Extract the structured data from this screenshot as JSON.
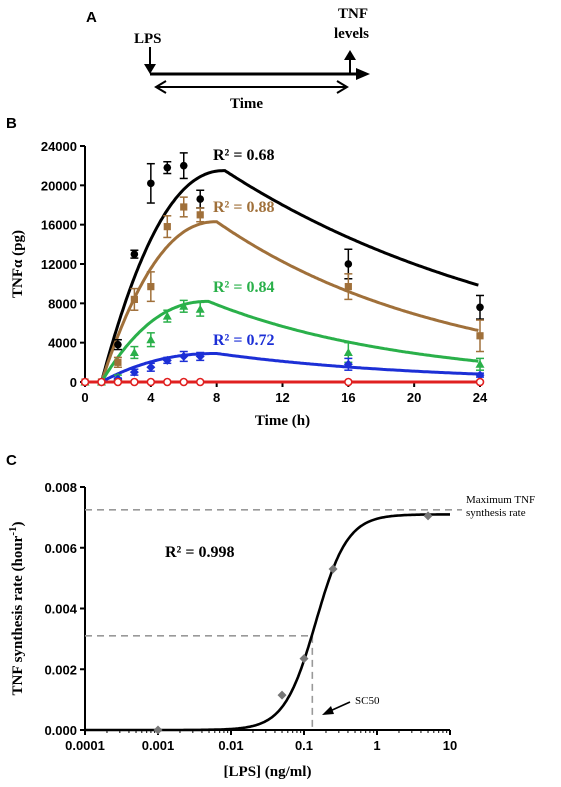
{
  "panel_a": {
    "label": "A",
    "lps": "LPS",
    "tnf_line1": "TNF",
    "tnf_line2": "levels",
    "time": "Time"
  },
  "chart_data": [
    {
      "type": "line",
      "panel": "B",
      "xlabel": "Time (h)",
      "ylabel": "TNFα (pg)",
      "xlim": [
        0,
        24
      ],
      "ylim": [
        0,
        24000
      ],
      "xticks": [
        "0",
        "4",
        "8",
        "12",
        "16",
        "20",
        "24"
      ],
      "yticks": [
        "0",
        "4000",
        "8000",
        "12000",
        "16000",
        "20000",
        "24000"
      ],
      "series": [
        {
          "color": "#000000",
          "marker": "circle",
          "r2_label": "R² = 0.68",
          "points": [
            [
              0,
              0
            ],
            [
              1,
              0
            ],
            [
              2,
              3800
            ],
            [
              3,
              13000
            ],
            [
              4,
              20200
            ],
            [
              5,
              21800
            ],
            [
              6,
              22000
            ],
            [
              7,
              18600
            ],
            [
              16,
              12000
            ],
            [
              24,
              7600
            ]
          ],
          "errors": [
            0,
            0,
            500,
            400,
            2000,
            600,
            1300,
            900,
            1500,
            1200
          ]
        },
        {
          "color": "#a0703a",
          "marker": "square",
          "r2_label": "R² = 0.88",
          "points": [
            [
              0,
              0
            ],
            [
              1,
              0
            ],
            [
              2,
              2000
            ],
            [
              3,
              8400
            ],
            [
              4,
              9700
            ],
            [
              5,
              15800
            ],
            [
              6,
              17800
            ],
            [
              7,
              17000
            ],
            [
              16,
              9700
            ],
            [
              24,
              4700
            ]
          ],
          "errors": [
            0,
            0,
            500,
            1100,
            1500,
            1100,
            1000,
            700,
            1300,
            1600
          ]
        },
        {
          "color": "#2ab04a",
          "marker": "triangle",
          "r2_label": "R² = 0.84",
          "points": [
            [
              0,
              0
            ],
            [
              1,
              0
            ],
            [
              2,
              500
            ],
            [
              3,
              3000
            ],
            [
              4,
              4300
            ],
            [
              5,
              6700
            ],
            [
              6,
              7700
            ],
            [
              7,
              7400
            ],
            [
              16,
              3000
            ],
            [
              24,
              1800
            ]
          ],
          "errors": [
            0,
            0,
            200,
            600,
            700,
            600,
            600,
            700,
            1000,
            600
          ]
        },
        {
          "color": "#1c2fd6",
          "marker": "diamond",
          "r2_label": "R² = 0.72",
          "points": [
            [
              0,
              0
            ],
            [
              1,
              0
            ],
            [
              2,
              300
            ],
            [
              3,
              1000
            ],
            [
              4,
              1500
            ],
            [
              5,
              2200
            ],
            [
              6,
              2600
            ],
            [
              7,
              2600
            ],
            [
              16,
              1800
            ],
            [
              24,
              700
            ]
          ],
          "errors": [
            0,
            0,
            100,
            300,
            400,
            300,
            500,
            400,
            600,
            200
          ]
        },
        {
          "color": "#e02020",
          "marker": "circle-open",
          "r2_label": "",
          "points": [
            [
              0,
              0
            ],
            [
              1,
              0
            ],
            [
              2,
              0
            ],
            [
              3,
              0
            ],
            [
              4,
              0
            ],
            [
              5,
              0
            ],
            [
              6,
              0
            ],
            [
              7,
              0
            ],
            [
              16,
              0
            ],
            [
              24,
              0
            ]
          ],
          "errors": [
            0,
            0,
            0,
            0,
            0,
            0,
            0,
            0,
            0,
            0
          ]
        }
      ],
      "fits": [
        {
          "color": "#000000",
          "peak": 21500,
          "tpeak": 8.5,
          "y24": 9800
        },
        {
          "color": "#a0703a",
          "peak": 16300,
          "tpeak": 8,
          "y24": 5200
        },
        {
          "color": "#2ab04a",
          "peak": 8200,
          "tpeak": 7.5,
          "y24": 2100
        },
        {
          "color": "#1c2fd6",
          "peak": 2900,
          "tpeak": 8,
          "y24": 800
        }
      ]
    },
    {
      "type": "scatter",
      "panel": "C",
      "xlabel": "[LPS] (ng/ml)",
      "ylabel_main": "TNF synthesis rate (hour",
      "ylabel_sup": "-1",
      "ylabel_end": ")",
      "xscale": "log",
      "xlim": [
        0.0001,
        10
      ],
      "ylim": [
        0,
        0.008
      ],
      "xticks": [
        "0.0001",
        "0.001",
        "0.01",
        "0.1",
        "1",
        "10"
      ],
      "yticks": [
        "0.000",
        "0.002",
        "0.004",
        "0.006",
        "0.008"
      ],
      "points": [
        [
          0.001,
          0
        ],
        [
          0.05,
          0.00115
        ],
        [
          0.1,
          0.00235
        ],
        [
          0.25,
          0.0053
        ],
        [
          5,
          0.00705
        ]
      ],
      "r2_label": "R² = 0.998",
      "max_label_line1": "Maximum TNF",
      "max_label_line2": "synthesis rate",
      "max_rate": 0.00725,
      "sc50_label": "SC50",
      "sc50_x": 0.13,
      "sc50_y": 0.0031
    }
  ],
  "labels": {
    "b": "B",
    "c": "C"
  }
}
